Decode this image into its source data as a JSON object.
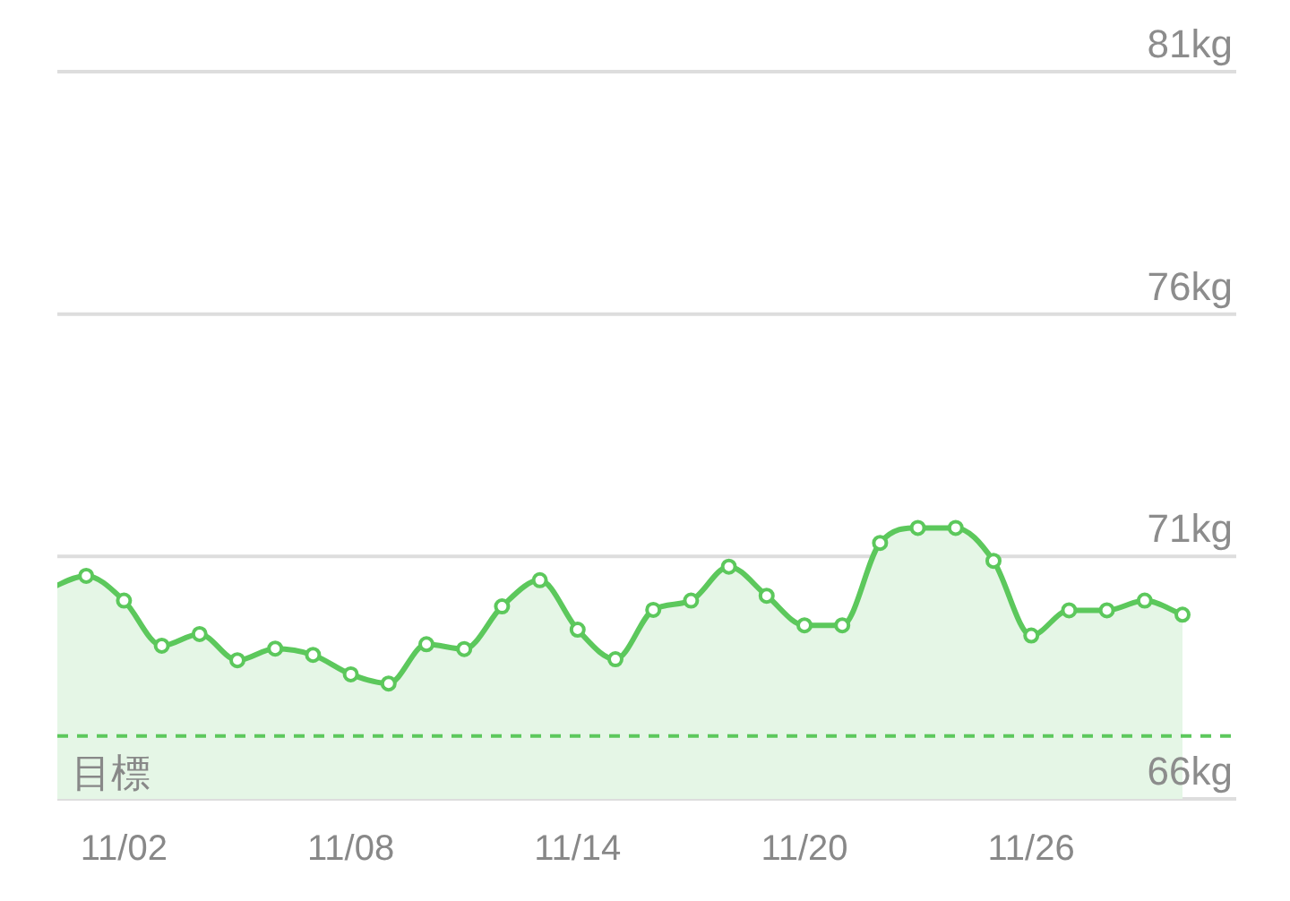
{
  "chart_data": {
    "type": "area",
    "categories": [
      null,
      null,
      "11/02",
      null,
      null,
      null,
      null,
      null,
      "11/08",
      null,
      null,
      null,
      null,
      null,
      "11/14",
      null,
      null,
      null,
      null,
      null,
      "11/20",
      null,
      null,
      null,
      null,
      null,
      "11/26",
      null,
      null,
      null,
      null
    ],
    "values": [
      70.33,
      70.6,
      70.09,
      69.16,
      69.4,
      68.86,
      69.1,
      68.97,
      68.57,
      68.38,
      69.19,
      69.09,
      69.97,
      70.51,
      69.49,
      68.88,
      69.9,
      70.09,
      70.79,
      70.19,
      69.58,
      69.58,
      71.28,
      71.59,
      71.59,
      70.91,
      69.37,
      69.89,
      69.89,
      70.09,
      69.8
    ],
    "color": "#5cc85c",
    "ylim": [
      66,
      81
    ],
    "yticks": [
      {
        "value": 66,
        "label": "66kg"
      },
      {
        "value": 71,
        "label": "71kg"
      },
      {
        "value": 76,
        "label": "76kg"
      },
      {
        "value": 81,
        "label": "81kg"
      }
    ],
    "grid": "y",
    "marker": "circle",
    "line_style": "solid",
    "ref_lines": [
      {
        "axis": "y",
        "value": 67.3,
        "label": "目標",
        "color": "#5cc85c",
        "line_style": "dashed"
      }
    ]
  }
}
